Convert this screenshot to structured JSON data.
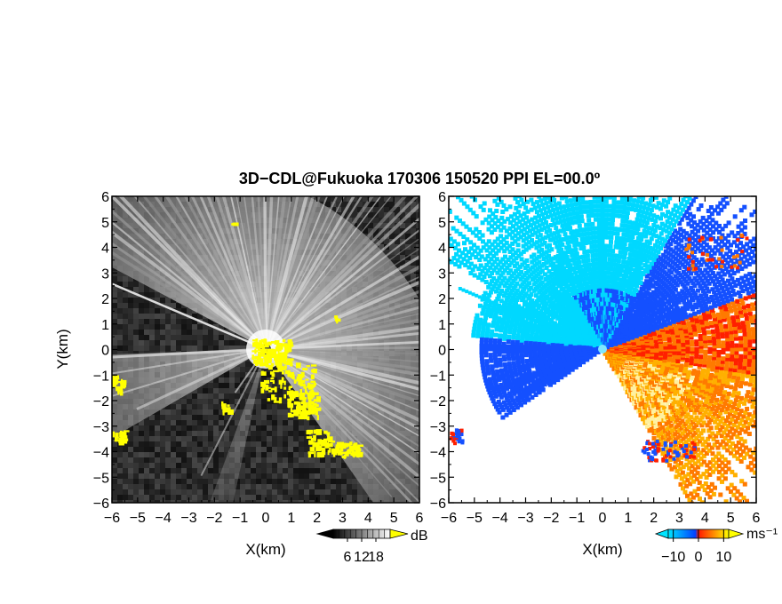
{
  "figure": {
    "title": "3D−CDL@Fukuoka 170306 150520 PPI EL=00.0º"
  },
  "chart_data": [
    {
      "type": "heatmap",
      "title": "3D−CDL@Fukuoka 170306 150520 PPI EL=00.0º",
      "xlabel": "X(km)",
      "ylabel": "Y(km)",
      "xlim": [
        -6,
        6
      ],
      "ylim": [
        -6,
        6
      ],
      "xticks": [
        -6,
        -5,
        -4,
        -3,
        -2,
        -1,
        0,
        1,
        2,
        3,
        4,
        5,
        6
      ],
      "yticks": [
        -6,
        -5,
        -4,
        -3,
        -2,
        -1,
        0,
        1,
        2,
        3,
        4,
        5,
        6
      ],
      "xtick_labels": [
        "−6",
        "−5",
        "−4",
        "−3",
        "−2",
        "−1",
        "0",
        "1",
        "2",
        "3",
        "4",
        "5",
        "6"
      ],
      "ytick_labels": [
        "−6",
        "−5",
        "−4",
        "−3",
        "−2",
        "−1",
        "0",
        "1",
        "2",
        "3",
        "4",
        "5",
        "6"
      ],
      "quantity": "reflectivity (grayscale), yellow = flagged echoes",
      "colorbar": {
        "unit": "dB",
        "ticks": [
          6,
          12,
          18
        ],
        "tick_labels": [
          "6",
          "12",
          "18"
        ],
        "colors": [
          "#000000",
          "#ffffff"
        ],
        "flag_color": "#ffff00"
      }
    },
    {
      "type": "heatmap",
      "xlabel": "X(km)",
      "xlim": [
        -6,
        6
      ],
      "ylim": [
        -6,
        6
      ],
      "xticks": [
        -6,
        -5,
        -4,
        -3,
        -2,
        -1,
        0,
        1,
        2,
        3,
        4,
        5,
        6
      ],
      "yticks": [
        -6,
        -5,
        -4,
        -3,
        -2,
        -1,
        0,
        1,
        2,
        3,
        4,
        5,
        6
      ],
      "xtick_labels": [
        "−6",
        "−5",
        "−4",
        "−3",
        "−2",
        "−1",
        "0",
        "1",
        "2",
        "3",
        "4",
        "5",
        "6"
      ],
      "ytick_labels": [
        "−6",
        "−5",
        "−4",
        "−3",
        "−2",
        "−1",
        "0",
        "1",
        "2",
        "3",
        "4",
        "5",
        "6"
      ],
      "quantity": "radial (Doppler) velocity",
      "colorbar": {
        "unit": "ms⁻¹",
        "ticks": [
          -10,
          0,
          10
        ],
        "tick_labels": [
          "−10",
          "0",
          "10"
        ],
        "colors": [
          "#00e5ff",
          "#0050ff",
          "#ff2000",
          "#ff8000",
          "#ffff00"
        ]
      }
    }
  ],
  "colors": {
    "yellow": "#ffff00",
    "cyan": "#00d8ff",
    "blue": "#1450ff",
    "red": "#ff2000",
    "orange": "#ff7a00"
  }
}
